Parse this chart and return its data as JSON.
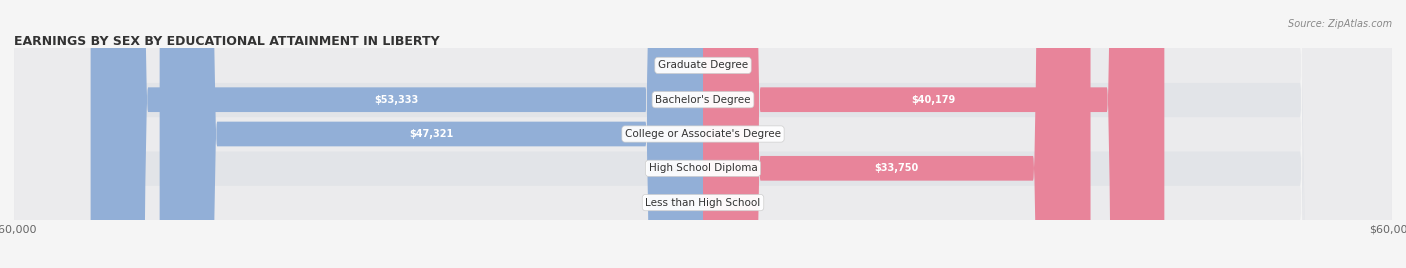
{
  "title": "EARNINGS BY SEX BY EDUCATIONAL ATTAINMENT IN LIBERTY",
  "source": "Source: ZipAtlas.com",
  "categories": [
    "Less than High School",
    "High School Diploma",
    "College or Associate's Degree",
    "Bachelor's Degree",
    "Graduate Degree"
  ],
  "male_values": [
    0,
    0,
    47321,
    53333,
    0
  ],
  "female_values": [
    0,
    33750,
    0,
    40179,
    0
  ],
  "max_value": 60000,
  "male_color": "#92afd7",
  "female_color": "#e8849a",
  "male_color_light": "#b8cce4",
  "female_color_light": "#f4b8c8",
  "bar_bg_color": "#e8eaf0",
  "row_bg_color": "#f0f2f5",
  "row_bg_alt": "#e8eaee",
  "label_color": "#333333",
  "title_color": "#333333",
  "axis_label_color": "#666666",
  "legend_male_color": "#6b96c8",
  "legend_female_color": "#e8849a",
  "figsize": [
    14.06,
    2.68
  ],
  "dpi": 100
}
